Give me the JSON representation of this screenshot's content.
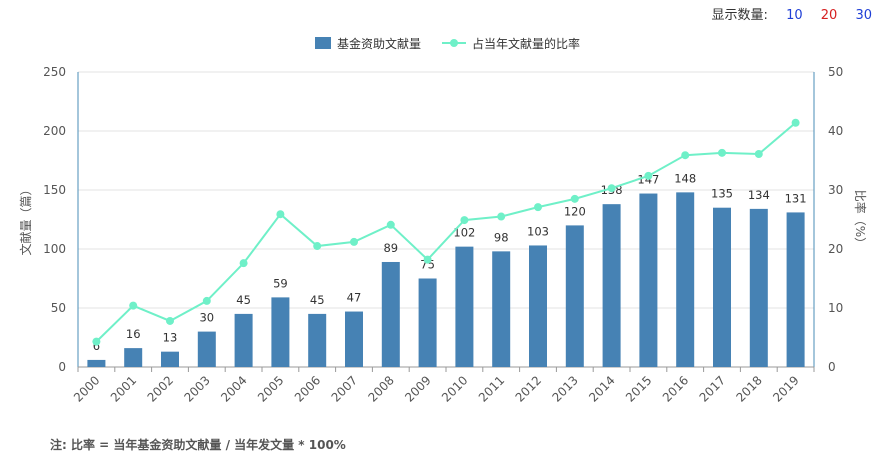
{
  "display_count": {
    "label": "显示数量:",
    "options": [
      {
        "label": "10",
        "color": "#1f3fd6"
      },
      {
        "label": "20",
        "color": "#d62020"
      },
      {
        "label": "30",
        "color": "#1f3fd6"
      }
    ]
  },
  "note": "注: 比率 = 当年基金资助文献量 / 当年发文量 * 100%",
  "chart_data": {
    "type": "bar",
    "categories": [
      "2000",
      "2001",
      "2002",
      "2003",
      "2004",
      "2005",
      "2006",
      "2007",
      "2008",
      "2009",
      "2010",
      "2011",
      "2012",
      "2013",
      "2014",
      "2015",
      "2016",
      "2017",
      "2018",
      "2019"
    ],
    "series": [
      {
        "name": "基金资助文献量",
        "type": "bar",
        "axis": "left",
        "color": "#4682b4",
        "values": [
          6,
          16,
          13,
          30,
          45,
          59,
          45,
          47,
          89,
          75,
          102,
          98,
          103,
          120,
          138,
          147,
          148,
          135,
          134,
          131
        ]
      },
      {
        "name": "占当年文献量的比率",
        "type": "line",
        "axis": "right",
        "color": "#6ff0c8",
        "values": [
          4.3,
          10.4,
          7.8,
          11.2,
          17.6,
          25.9,
          20.5,
          21.2,
          24.1,
          18.2,
          24.9,
          25.5,
          27.1,
          28.5,
          30.3,
          32.4,
          35.9,
          36.3,
          36.1,
          41.4
        ]
      }
    ],
    "ylabel": "文献量（篇）",
    "y2label": "比率（%）",
    "ylim": [
      0,
      250
    ],
    "y2lim": [
      0,
      50
    ],
    "yticks": [
      0,
      50,
      100,
      150,
      200,
      250
    ],
    "y2ticks": [
      0,
      10,
      20,
      30,
      40,
      50
    ],
    "grid": true,
    "legend": "top-center"
  }
}
